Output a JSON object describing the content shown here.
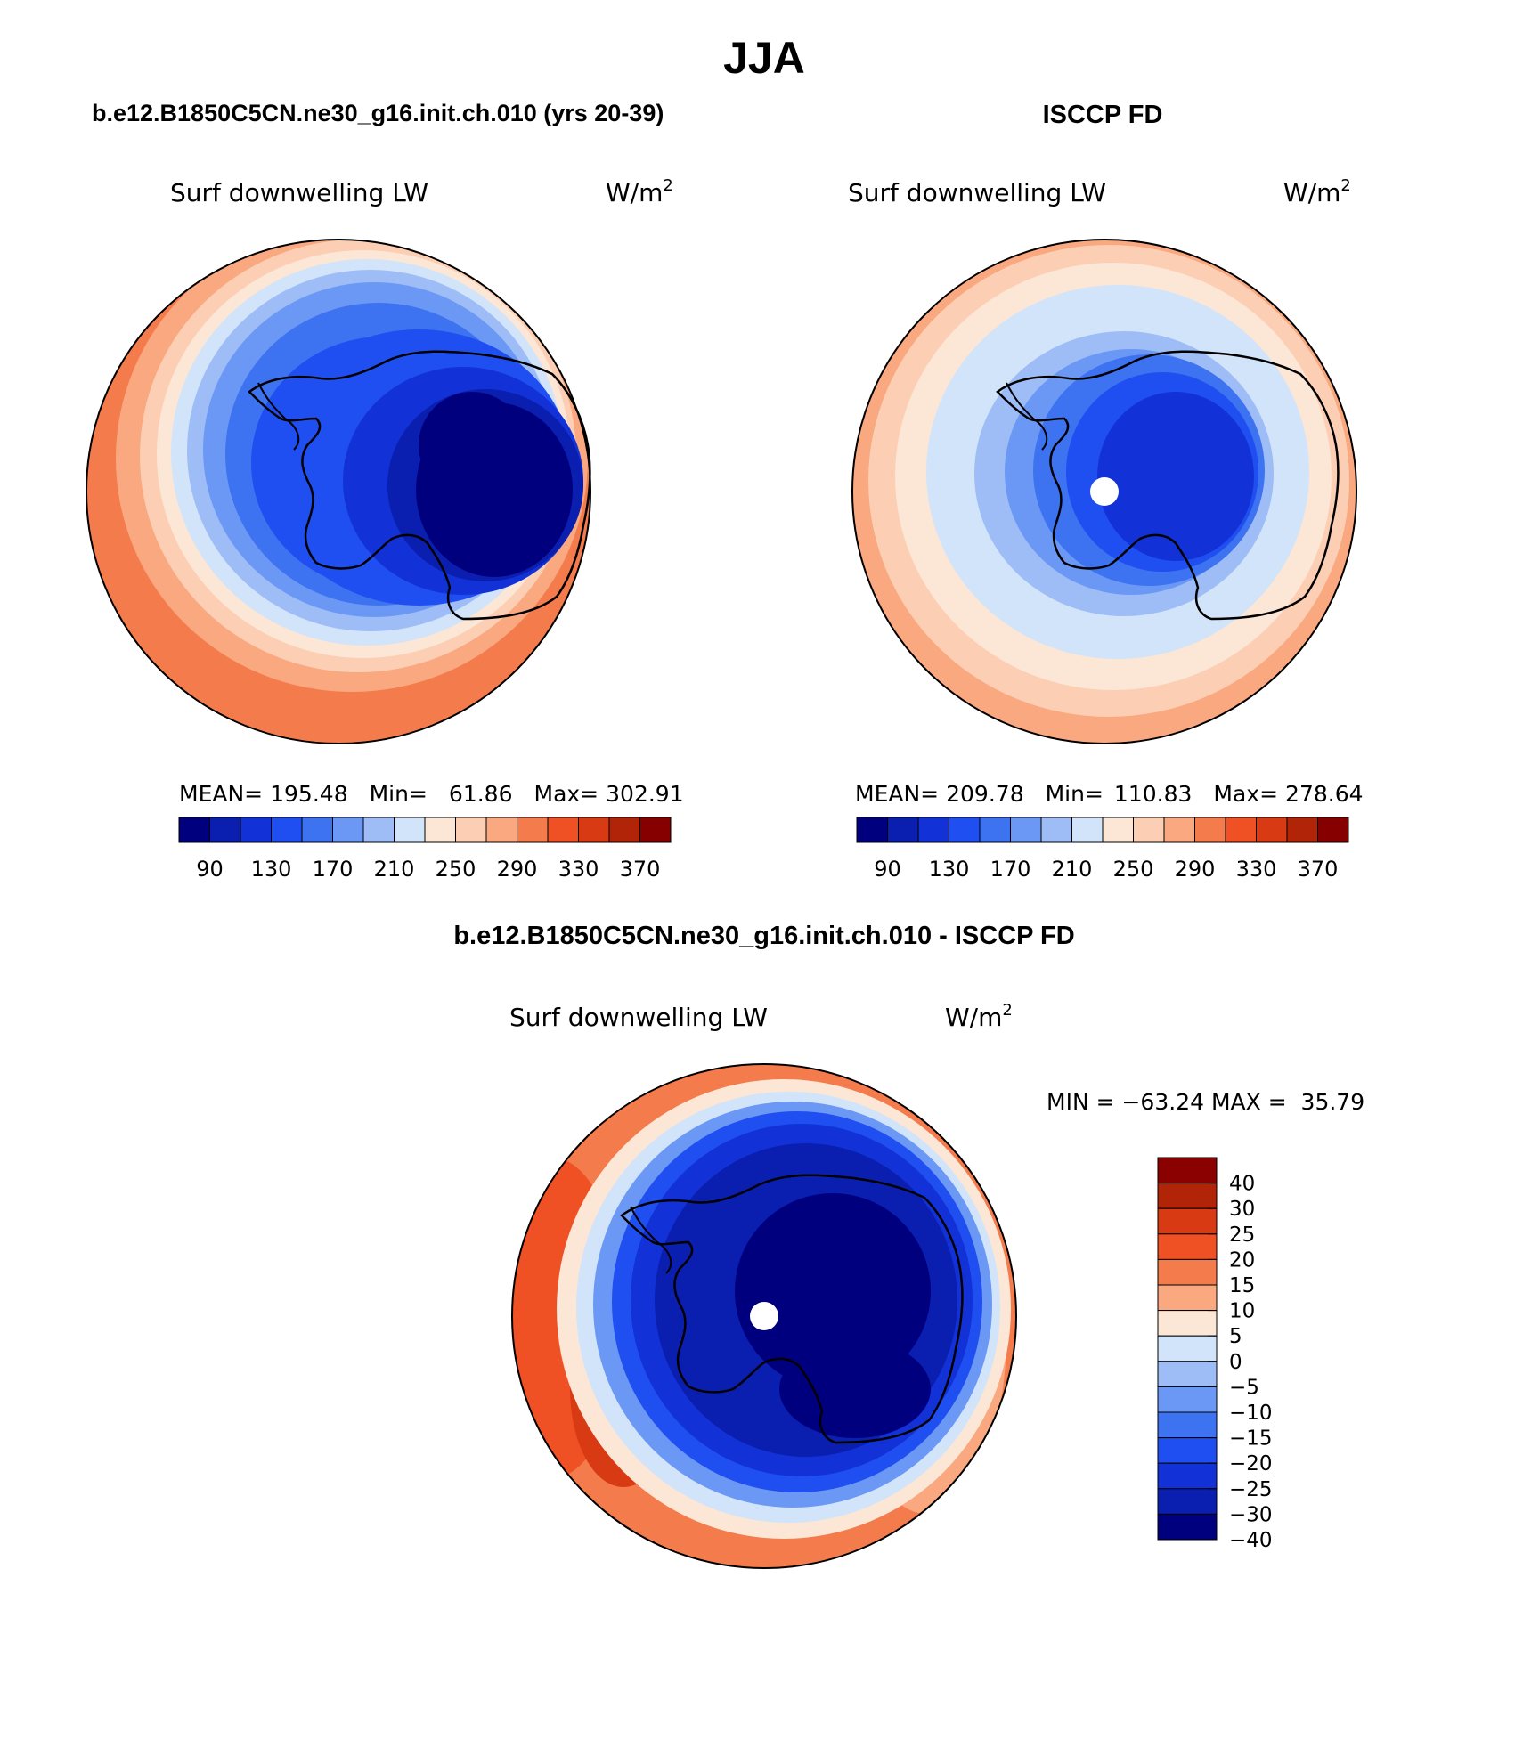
{
  "title": "JJA",
  "panels": [
    {
      "id": "model",
      "header": "b.e12.B1850C5CN.ne30_g16.init.ch.010 (yrs 20-39)",
      "variable": "Surf downwelling LW",
      "units_base": "W/m",
      "units_exp": "2",
      "stats": {
        "mean_label": "MEAN=",
        "mean": "195.48",
        "min_label": "Min=",
        "min": "61.86",
        "max_label": "Max=",
        "max": "302.91"
      },
      "pole_mask": false
    },
    {
      "id": "obs",
      "header": "ISCCP FD",
      "variable": "Surf downwelling LW",
      "units_base": "W/m",
      "units_exp": "2",
      "stats": {
        "mean_label": "MEAN=",
        "mean": "209.78",
        "min_label": "Min=",
        "min": "110.83",
        "max_label": "Max=",
        "max": "278.64"
      },
      "pole_mask": true
    }
  ],
  "diff_panel": {
    "header": "b.e12.B1850C5CN.ne30_g16.init.ch.010 - ISCCP FD",
    "variable": "Surf downwelling LW",
    "units_base": "W/m",
    "units_exp": "2",
    "stats_text": "MIN = −63.24 MAX =  35.79",
    "pole_mask": true
  },
  "colorbar_abs": {
    "colors": [
      "#00007f",
      "#0a1fb0",
      "#1232d8",
      "#1f4ff0",
      "#3d72f0",
      "#6b98f5",
      "#9ebdf7",
      "#d2e4fa",
      "#fce6d6",
      "#fccfb4",
      "#f9a880",
      "#f47b4c",
      "#ef5024",
      "#d83a14",
      "#b22408",
      "#870000"
    ],
    "tick_labels": [
      "90",
      "130",
      "170",
      "210",
      "250",
      "290",
      "330",
      "370"
    ],
    "tick_boundaries": [
      1,
      3,
      5,
      7,
      9,
      11,
      13,
      15
    ]
  },
  "colorbar_diff": {
    "colors_top_to_bottom": [
      "#8b0000",
      "#b22408",
      "#d83a14",
      "#ef5024",
      "#f47b4c",
      "#f9a880",
      "#fce6d6",
      "#d2e4fa",
      "#9ebdf7",
      "#6b98f5",
      "#3d72f0",
      "#1f4ff0",
      "#1232d8",
      "#0a1fb0",
      "#00007f"
    ],
    "tick_labels_top_to_bottom": [
      "40",
      "30",
      "25",
      "20",
      "15",
      "10",
      "5",
      "0",
      "−5",
      "−10",
      "−15",
      "−20",
      "−25",
      "−30",
      "−40"
    ]
  }
}
